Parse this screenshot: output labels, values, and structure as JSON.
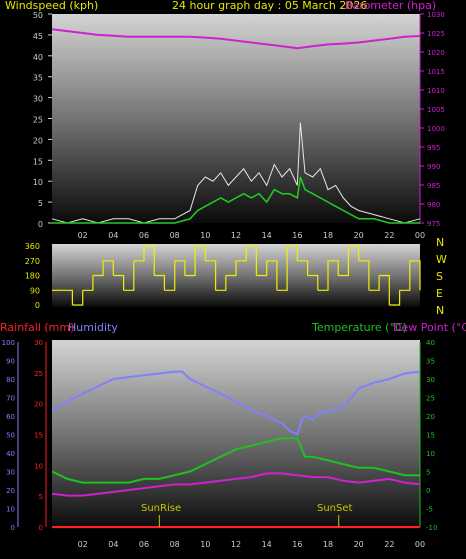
{
  "title": "24 hour graph day : 05 March 2026",
  "colors": {
    "background": "#000000",
    "wind_gust": "#e8e8e8",
    "wind_avg": "#20d020",
    "barometer": "#d020d0",
    "direction": "#f0f000",
    "rainfall": "#ff2020",
    "humidity": "#8080ff",
    "temperature": "#20c020",
    "dewpoint": "#d020d0",
    "sun_marker": "#c8c800"
  },
  "hour_ticks": [
    "02",
    "04",
    "06",
    "08",
    "10",
    "12",
    "14",
    "16",
    "18",
    "20",
    "22",
    "00"
  ],
  "chart_data": [
    {
      "type": "line",
      "name": "wind-barometer",
      "labels": {
        "left_axis": "Windspeed (kph)",
        "right_axis": "Barometer (hpa)"
      },
      "x_hours": [
        0,
        24
      ],
      "left_axis": {
        "ylim": [
          0,
          50
        ],
        "ticks": [
          0,
          5,
          10,
          15,
          20,
          25,
          30,
          35,
          40,
          45,
          50
        ]
      },
      "right_axis": {
        "ylim": [
          975,
          1030
        ],
        "ticks": [
          975,
          980,
          985,
          990,
          995,
          1000,
          1005,
          1010,
          1015,
          1020,
          1025,
          1030
        ]
      },
      "series": [
        {
          "key": "barometer",
          "axis": "right",
          "x": [
            0,
            1,
            2,
            3,
            4,
            5,
            6,
            7,
            8,
            9,
            10,
            11,
            12,
            13,
            14,
            15,
            16,
            17,
            18,
            19,
            20,
            21,
            22,
            23,
            24
          ],
          "y": [
            1026,
            1025.5,
            1025,
            1024.5,
            1024.3,
            1024,
            1024,
            1024,
            1024,
            1024,
            1023.8,
            1023.5,
            1023,
            1022.5,
            1022,
            1021.5,
            1021,
            1021.5,
            1022,
            1022.2,
            1022.5,
            1023,
            1023.5,
            1024,
            1024.2
          ]
        },
        {
          "key": "gust",
          "axis": "left",
          "x": [
            0,
            1,
            2,
            3,
            4,
            5,
            6,
            7,
            8,
            9,
            9.5,
            10,
            10.5,
            11,
            11.5,
            12,
            12.5,
            13,
            13.5,
            14,
            14.5,
            15,
            15.5,
            16,
            16.2,
            16.5,
            17,
            17.5,
            18,
            18.5,
            19,
            19.5,
            20,
            21,
            22,
            23,
            24
          ],
          "y": [
            1,
            0,
            1,
            0,
            1,
            1,
            0,
            1,
            1,
            3,
            9,
            11,
            10,
            12,
            9,
            11,
            13,
            10,
            12,
            9,
            14,
            11,
            13,
            9,
            24,
            12,
            11,
            13,
            8,
            9,
            6,
            4,
            3,
            2,
            1,
            0,
            1
          ]
        },
        {
          "key": "average",
          "axis": "left",
          "x": [
            0,
            1,
            2,
            3,
            4,
            5,
            6,
            7,
            8,
            9,
            9.5,
            10,
            10.5,
            11,
            11.5,
            12,
            12.5,
            13,
            13.5,
            14,
            14.5,
            15,
            15.5,
            16,
            16.2,
            16.5,
            17,
            17.5,
            18,
            18.5,
            19,
            19.5,
            20,
            21,
            22,
            23,
            24
          ],
          "y": [
            0,
            0,
            0,
            0,
            0,
            0,
            0,
            0,
            0,
            1,
            3,
            4,
            5,
            6,
            5,
            6,
            7,
            6,
            7,
            5,
            8,
            7,
            7,
            6,
            11,
            8,
            7,
            6,
            5,
            4,
            3,
            2,
            1,
            1,
            0,
            0,
            0
          ]
        }
      ]
    },
    {
      "type": "scatter",
      "name": "wind-direction",
      "ylim": [
        0,
        360
      ],
      "left_ticks": [
        0,
        90,
        180,
        270,
        360
      ],
      "compass_labels": [
        "N",
        "W",
        "S",
        "E",
        "N"
      ],
      "x_hours": [
        0,
        24
      ],
      "description_values_deg": [
        90,
        90,
        0,
        90,
        180,
        270,
        180,
        90,
        270,
        360,
        180,
        90,
        270,
        180,
        360,
        270,
        90,
        180,
        270,
        360,
        180,
        270,
        90,
        360,
        270,
        180,
        90,
        270,
        180,
        360,
        270,
        90,
        180,
        0,
        90,
        270,
        90
      ]
    },
    {
      "type": "line",
      "name": "temperature-humidity-rain",
      "labels": {
        "rain_axis": "Rainfall (mm)",
        "humidity_axis": "Humidity",
        "temp_axis": "Temperature (°C)",
        "dew_axis": "Dew Point (°C)"
      },
      "annotations": {
        "sunrise": "SunRise",
        "sunset": "SunSet"
      },
      "sunrise_hour": 7.0,
      "sunset_hour": 18.7,
      "x_hours": [
        0,
        24
      ],
      "humidity_axis": {
        "ylim": [
          0,
          100
        ],
        "ticks": [
          0,
          10,
          20,
          30,
          40,
          50,
          60,
          70,
          80,
          90,
          100
        ]
      },
      "rain_axis": {
        "ylim": [
          0,
          30
        ],
        "ticks": [
          0,
          5,
          10,
          15,
          20,
          25,
          30
        ]
      },
      "temp_axis": {
        "ylim": [
          -10,
          40
        ],
        "ticks": [
          -10,
          -5,
          0,
          5,
          10,
          15,
          20,
          25,
          30,
          35,
          40
        ]
      },
      "series": [
        {
          "key": "humidity",
          "axis": "humidity",
          "x": [
            0,
            1,
            2,
            3,
            4,
            5,
            6,
            7,
            8,
            8.5,
            9,
            10,
            11,
            12,
            13,
            14,
            15,
            15.5,
            16,
            16.3,
            16.6,
            17,
            17.5,
            18,
            19,
            20,
            21,
            22,
            23,
            24
          ],
          "y": [
            63,
            68,
            72,
            76,
            80,
            81,
            82,
            83,
            84,
            84,
            80,
            76,
            72,
            68,
            63,
            60,
            56,
            52,
            50,
            58,
            60,
            58,
            62,
            62,
            65,
            75,
            78,
            80,
            83,
            84
          ]
        },
        {
          "key": "temperature",
          "axis": "temp",
          "x": [
            0,
            1,
            2,
            3,
            4,
            5,
            6,
            7,
            8,
            9,
            10,
            11,
            12,
            13,
            14,
            15,
            16,
            16.5,
            17,
            18,
            19,
            20,
            21,
            22,
            23,
            24
          ],
          "y": [
            5,
            3,
            2,
            2,
            2,
            2,
            3,
            3,
            4,
            5,
            7,
            9,
            11,
            12,
            13,
            14,
            14,
            9,
            9,
            8,
            7,
            6,
            6,
            5,
            4,
            4
          ]
        },
        {
          "key": "dewpoint",
          "axis": "temp",
          "x": [
            0,
            1,
            2,
            3,
            4,
            5,
            6,
            7,
            8,
            9,
            10,
            11,
            12,
            13,
            14,
            15,
            16,
            17,
            18,
            19,
            20,
            21,
            22,
            23,
            24
          ],
          "y": [
            -1,
            -1.5,
            -1.5,
            -1,
            -0.5,
            0,
            0.5,
            1,
            1.5,
            1.5,
            2,
            2.5,
            3,
            3.5,
            4.5,
            4.5,
            4,
            3.5,
            3.5,
            2.5,
            2,
            2.5,
            3,
            2,
            1.5
          ]
        },
        {
          "key": "rainfall",
          "axis": "rain",
          "x": [
            0,
            24
          ],
          "y": [
            0,
            0
          ]
        }
      ]
    }
  ]
}
